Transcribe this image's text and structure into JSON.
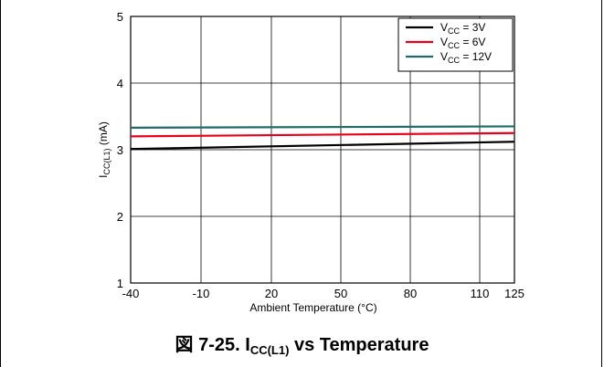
{
  "chart_data": {
    "type": "line",
    "xlabel": "Ambient Temperature (°C)",
    "ylabel_main": "I",
    "ylabel_sub": "CC(L1)",
    "ylabel_unit": " (mA)",
    "x_ticks": [
      -40,
      -10,
      20,
      50,
      80,
      110,
      125
    ],
    "y_ticks": [
      1,
      2,
      3,
      4,
      5
    ],
    "xlim": [
      -40,
      125
    ],
    "ylim": [
      1,
      5
    ],
    "grid": true,
    "legend_position": "top-right",
    "series": [
      {
        "name_main": "V",
        "name_sub": "CC",
        "name_rest": " = 3V",
        "color": "#000000",
        "x": [
          -40,
          125
        ],
        "y": [
          3.01,
          3.12
        ]
      },
      {
        "name_main": "V",
        "name_sub": "CC",
        "name_rest": " = 6V",
        "color": "#e8001c",
        "x": [
          -40,
          125
        ],
        "y": [
          3.2,
          3.25
        ]
      },
      {
        "name_main": "V",
        "name_sub": "CC",
        "name_rest": " = 12V",
        "color": "#1f6b6b",
        "x": [
          -40,
          125
        ],
        "y": [
          3.33,
          3.35
        ]
      }
    ]
  },
  "caption": {
    "prefix": "図 7-25. I",
    "sub": "CC(L1)",
    "suffix": " vs Temperature"
  }
}
